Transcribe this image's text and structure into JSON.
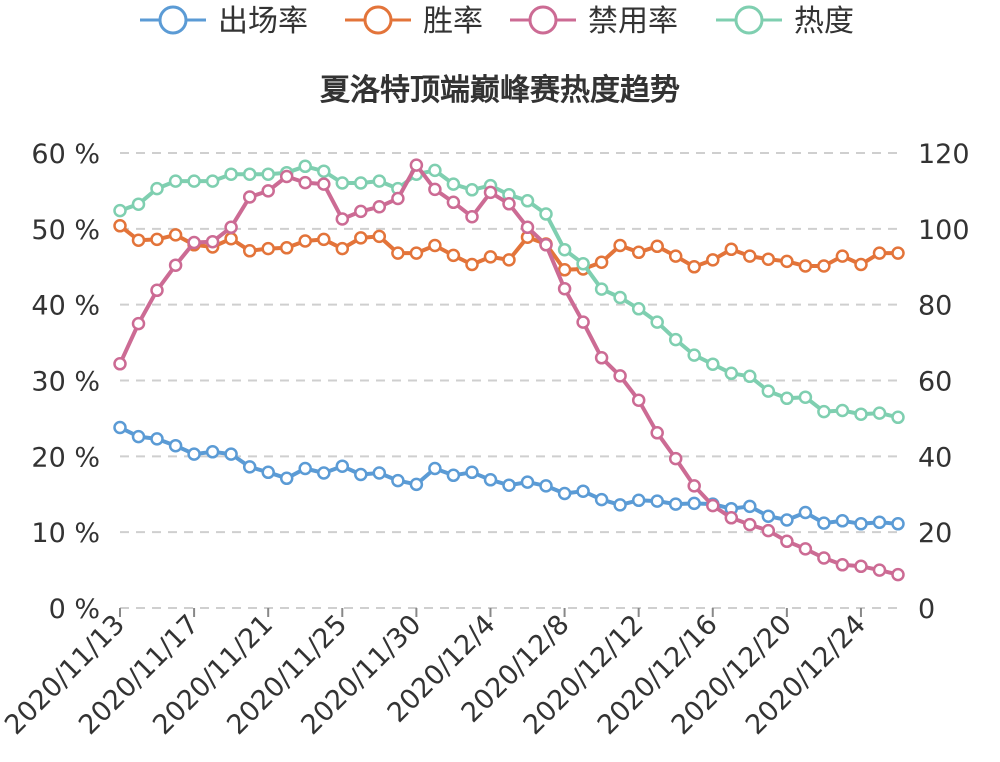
{
  "chart_data": {
    "type": "line",
    "title": "夏洛特顶端巅峰赛热度趋势",
    "colors": {
      "出场率": "#5b9bd5",
      "胜率": "#e3743a",
      "禁用率": "#cc6b94",
      "热度": "#7fcfb0"
    },
    "y_left": {
      "ticks": [
        "0 %",
        "10 %",
        "20 %",
        "30 %",
        "40 %",
        "50 %",
        "60 %"
      ],
      "range": [
        0,
        60
      ],
      "unit": "%"
    },
    "y_right": {
      "ticks": [
        "0",
        "20",
        "40",
        "60",
        "80",
        "100",
        "120"
      ],
      "range": [
        0,
        120
      ]
    },
    "x_tick_labels": [
      "2020/11/13",
      "2020/11/17",
      "2020/11/21",
      "2020/11/25",
      "2020/11/30",
      "2020/12/4",
      "2020/12/8",
      "2020/12/12",
      "2020/12/16",
      "2020/12/20",
      "2020/12/24"
    ],
    "x_tick_indices": [
      0,
      4,
      8,
      12,
      16,
      20,
      24,
      28,
      32,
      36,
      40
    ],
    "point_count": 43,
    "grid": true,
    "legend_position": "top",
    "series": [
      {
        "name": "出场率",
        "axis": "left",
        "values": [
          23.8,
          22.6,
          22.3,
          21.4,
          20.3,
          20.6,
          20.3,
          18.6,
          17.9,
          17.1,
          18.4,
          17.8,
          18.7,
          17.6,
          17.8,
          16.8,
          16.3,
          18.4,
          17.5,
          17.9,
          16.9,
          16.2,
          16.6,
          16.1,
          15.1,
          15.4,
          14.3,
          13.6,
          14.2,
          14.1,
          13.7,
          13.8,
          13.7,
          13.1,
          13.4,
          12.1,
          11.6,
          12.6,
          11.2,
          11.5,
          11.1,
          11.3,
          11.1
        ]
      },
      {
        "name": "胜率",
        "axis": "left",
        "values": [
          50.4,
          48.5,
          48.6,
          49.2,
          47.9,
          47.6,
          48.7,
          47.1,
          47.4,
          47.5,
          48.4,
          48.6,
          47.4,
          48.8,
          49.0,
          46.8,
          46.8,
          47.8,
          46.5,
          45.3,
          46.3,
          45.9,
          48.9,
          48.0,
          44.6,
          44.7,
          45.6,
          47.8,
          46.9,
          47.7,
          46.4,
          45.0,
          45.9,
          47.3,
          46.4,
          46.0,
          45.7,
          45.1,
          45.1,
          46.4,
          45.3,
          46.8,
          46.8
        ]
      },
      {
        "name": "禁用率",
        "axis": "left",
        "values": [
          32.2,
          37.5,
          41.9,
          45.2,
          48.2,
          48.3,
          50.2,
          54.2,
          55.0,
          56.9,
          56.1,
          55.9,
          51.3,
          52.3,
          52.9,
          54.0,
          58.4,
          55.2,
          53.5,
          51.6,
          54.8,
          53.3,
          50.2,
          47.9,
          42.1,
          37.7,
          33.0,
          30.6,
          27.4,
          23.1,
          19.7,
          16.1,
          13.5,
          11.9,
          11.0,
          10.2,
          8.8,
          7.8,
          6.6,
          5.7,
          5.5,
          5.0,
          4.4
        ]
      },
      {
        "name": "热度",
        "axis": "right",
        "values": [
          104.8,
          106.5,
          110.6,
          112.6,
          112.6,
          112.6,
          114.4,
          114.4,
          114.4,
          114.8,
          116.5,
          115.2,
          112.1,
          112.1,
          112.6,
          110.6,
          114.4,
          115.4,
          111.8,
          110.3,
          111.4,
          109.0,
          107.4,
          103.9,
          94.5,
          90.8,
          84.1,
          81.9,
          78.9,
          75.4,
          70.8,
          66.7,
          64.3,
          61.9,
          61.1,
          57.2,
          55.3,
          55.6,
          51.8,
          52.1,
          51.1,
          51.4,
          50.3
        ]
      }
    ]
  }
}
